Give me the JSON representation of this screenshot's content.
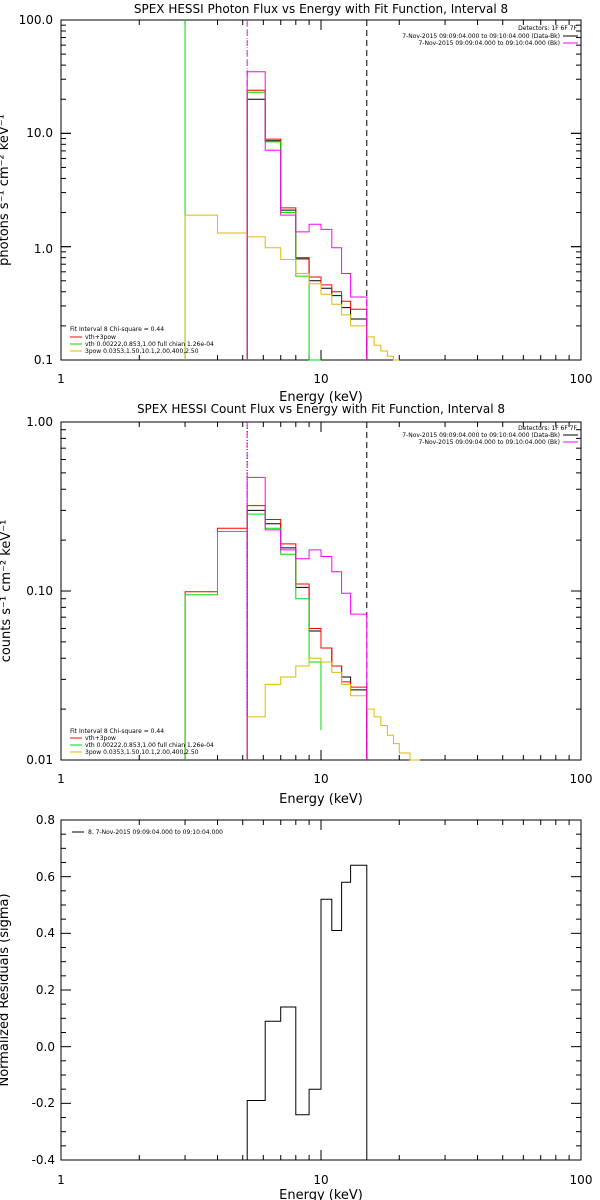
{
  "chart_data": [
    {
      "type": "line",
      "title": "SPEX HESSI Photon Flux vs Energy with Fit Function, Interval 8",
      "xlabel": "Energy (keV)",
      "ylabel": "photons s⁻¹ cm⁻² keV⁻¹",
      "x_scale": "log",
      "y_scale": "log",
      "xlim": [
        1,
        100
      ],
      "ylim": [
        0.1,
        100
      ],
      "x_ticks": [
        "1",
        "10",
        "100"
      ],
      "y_ticks": [
        "0.1",
        "1.0",
        "10.0",
        "100.0"
      ],
      "detectors_label": "Detectors: 1F 6F 7F",
      "legend_top": [
        {
          "text": "7-Nov-2015 09:09:04.000 to 09:10:04.000 (Data-Bk)",
          "color": "#000000"
        },
        {
          "text": "7-Nov-2015 09:09:04.000 to 09:10:04.000 (Bk)",
          "color": "#ff00ff"
        }
      ],
      "fit_header": "Fit Interval 8   Chi-square = 0.44",
      "legend_fit": [
        {
          "text": "vth+3pow",
          "color": "#ff0000"
        },
        {
          "text": "vth 0.00222,0.853,1.00  full chian 1.26e-04",
          "color": "#00dd00"
        },
        {
          "text": "3pow 0.0353,1.50,10.1,2.00,400,2.50",
          "color": "#ddbb00"
        }
      ],
      "vlines": [
        {
          "x": 3.0,
          "color": "#00dd00",
          "style": "solid"
        },
        {
          "x": 5.2,
          "color": "#00dd00",
          "style": "dotted"
        },
        {
          "x": 5.2,
          "color": "#ff00ff",
          "style": "dashed"
        },
        {
          "x": 15.0,
          "color": "#000000",
          "style": "dashed"
        }
      ],
      "series": [
        {
          "color": "#000000",
          "edges": [
            5.2,
            6.1,
            7.0,
            8.0,
            9.0,
            10.0,
            11.0,
            12.0,
            13.0,
            15.0
          ],
          "values": [
            20,
            8.6,
            2.1,
            0.78,
            0.5,
            0.43,
            0.37,
            0.29,
            0.23
          ]
        },
        {
          "color": "#ff0000",
          "edges": [
            5.2,
            6.1,
            7.0,
            8.0,
            9.0,
            10.0,
            11.0,
            12.0,
            13.0,
            15.0
          ],
          "values": [
            24,
            8.9,
            2.2,
            0.8,
            0.54,
            0.46,
            0.4,
            0.33,
            0.28
          ]
        },
        {
          "color": "#00dd00",
          "edges": [
            5.2,
            6.1,
            7.0,
            8.0,
            9.0,
            10.0
          ],
          "values": [
            23,
            8.4,
            2.0,
            0.55,
            0.1
          ]
        },
        {
          "color": "#ddbb00",
          "edges": [
            3.0,
            4.0,
            5.2,
            6.1,
            7.0,
            8.0,
            9.0,
            10.0,
            11.0,
            12.0,
            13.0,
            15.0,
            16.0,
            17.0,
            18.0,
            19.0,
            20.0
          ],
          "values": [
            1.9,
            1.32,
            1.22,
            0.98,
            0.77,
            0.58,
            0.47,
            0.38,
            0.31,
            0.25,
            0.2,
            0.16,
            0.135,
            0.12,
            0.108,
            0.1
          ]
        },
        {
          "color": "#ff00ff",
          "edges": [
            5.2,
            6.1,
            7.0,
            8.0,
            9.0,
            10.0,
            11.0,
            12.0,
            13.0,
            15.0
          ],
          "values": [
            35,
            7.1,
            1.9,
            1.35,
            1.58,
            1.42,
            0.98,
            0.58,
            0.36
          ]
        }
      ]
    },
    {
      "type": "line",
      "title": "SPEX HESSI Count Flux vs Energy with Fit Function, Interval 8",
      "xlabel": "Energy (keV)",
      "ylabel": "counts s⁻¹ cm⁻² keV⁻¹",
      "x_scale": "log",
      "y_scale": "log",
      "xlim": [
        1,
        100
      ],
      "ylim": [
        0.01,
        1
      ],
      "x_ticks": [
        "1",
        "10",
        "100"
      ],
      "y_ticks": [
        "0.01",
        "0.10",
        "1.00"
      ],
      "detectors_label": "Detectors: 1F 6F 7F",
      "legend_top": [
        {
          "text": "7-Nov-2015 09:09:04.000 to 09:10:04.000 (Data-Bk)",
          "color": "#000000"
        },
        {
          "text": "7-Nov-2015 09:09:04.000 to 09:10:04.000 (Bk)",
          "color": "#ff00ff"
        }
      ],
      "fit_header": "Fit Interval 8   Chi-square = 0.44",
      "legend_fit": [
        {
          "text": "vth+3pow",
          "color": "#ff0000"
        },
        {
          "text": "vth 0.00222,0.853,1.00  full chian 1.26e-04",
          "color": "#00dd00"
        },
        {
          "text": "3pow 0.0353,1.50,10.1,2.00,400,2.50",
          "color": "#ddbb00"
        }
      ],
      "vlines": [
        {
          "x": 5.2,
          "color": "#000000",
          "style": "dotted"
        },
        {
          "x": 5.2,
          "color": "#ff00ff",
          "style": "dashed"
        },
        {
          "x": 15.0,
          "color": "#000000",
          "style": "dashed"
        }
      ],
      "series": [
        {
          "color": "#000000",
          "edges": [
            5.2,
            6.1,
            7.0,
            8.0,
            9.0,
            10.0,
            11.0,
            12.0,
            13.0,
            15.0
          ],
          "values": [
            0.3,
            0.25,
            0.18,
            0.105,
            0.058,
            0.046,
            0.036,
            0.031,
            0.026
          ]
        },
        {
          "color": "#ff0000",
          "edges": [
            3.0,
            4.0,
            5.2,
            6.1,
            7.0,
            8.0,
            9.0,
            10.0,
            11.0,
            12.0,
            13.0,
            15.0
          ],
          "values": [
            0.099,
            0.235,
            0.32,
            0.265,
            0.19,
            0.11,
            0.06,
            0.046,
            0.036,
            0.029,
            0.027
          ]
        },
        {
          "color": "#00dd00",
          "edges": [
            3.0,
            4.0,
            5.2,
            6.1,
            7.0,
            8.0,
            9.0,
            10.0
          ],
          "values": [
            0.095,
            0.225,
            0.285,
            0.235,
            0.165,
            0.09,
            0.038,
            0.015
          ]
        },
        {
          "color": "#ddbb00",
          "edges": [
            5.2,
            6.1,
            7.0,
            8.0,
            9.0,
            10.0,
            11.0,
            12.0,
            13.0,
            15.0,
            16.0,
            17.0,
            18.0,
            19.0,
            20.0,
            22.0,
            24.0
          ],
          "values": [
            0.018,
            0.028,
            0.031,
            0.036,
            0.04,
            0.038,
            0.033,
            0.028,
            0.024,
            0.02,
            0.018,
            0.016,
            0.014,
            0.0125,
            0.011,
            0.01
          ]
        },
        {
          "color": "#ff00ff",
          "edges": [
            5.2,
            6.1,
            7.0,
            8.0,
            9.0,
            10.0,
            11.0,
            12.0,
            13.0,
            15.0
          ],
          "values": [
            0.47,
            0.23,
            0.175,
            0.155,
            0.175,
            0.16,
            0.13,
            0.097,
            0.073
          ]
        }
      ]
    },
    {
      "type": "line",
      "title": "",
      "xlabel": "Energy (keV)",
      "ylabel": "Normalized Residuals (sigma)",
      "x_scale": "log",
      "y_scale": "linear",
      "xlim": [
        1,
        100
      ],
      "ylim": [
        -0.4,
        0.8
      ],
      "x_ticks": [
        "1",
        "10",
        "100"
      ],
      "y_ticks": [
        "-0.4",
        "-0.2",
        "0.0",
        "0.2",
        "0.4",
        "0.6",
        "0.8"
      ],
      "legend_top": [
        {
          "text": "8.  7-Nov-2015 09:09:04.000 to 09:10:04.000",
          "color": "#000000"
        }
      ],
      "series": [
        {
          "color": "#000000",
          "edges": [
            5.2,
            6.1,
            7.0,
            8.0,
            9.0,
            10.0,
            11.0,
            12.0,
            13.0,
            15.0
          ],
          "values": [
            -0.19,
            0.09,
            0.14,
            -0.24,
            -0.15,
            0.52,
            0.41,
            0.58,
            0.64
          ]
        }
      ]
    }
  ]
}
